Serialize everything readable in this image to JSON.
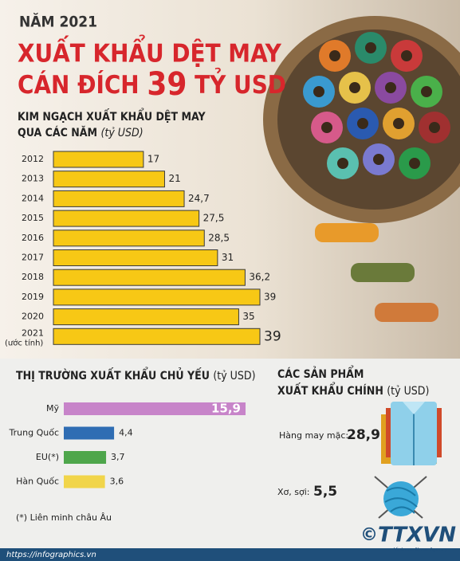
{
  "header": {
    "kicker": "NĂM 2021",
    "title_line1": "XUẤT KHẨU DỆT MAY",
    "title_line2": [
      "CÁN ĐÍCH",
      "39",
      "TỶ USD"
    ]
  },
  "chart_data": [
    {
      "type": "hbar",
      "title": [
        "KIM NGẠCH XUẤT KHẨU DỆT MAY",
        "QUA CÁC NĂM"
      ],
      "unit": "(tỷ USD)",
      "categories": [
        "2012",
        "2013",
        "2014",
        "2015",
        "2016",
        "2017",
        "2018",
        "2019",
        "2020",
        "2021"
      ],
      "annotations": [
        "(ước tính)"
      ],
      "values": [
        17,
        21,
        24.7,
        27.5,
        28.5,
        31,
        36.2,
        39,
        35,
        39
      ],
      "value_labels": [
        "17",
        "21",
        "24,7",
        "27,5",
        "28,5",
        "31",
        "36,2",
        "39",
        "35",
        "39"
      ],
      "color": "#f7c815"
    },
    {
      "type": "hbar-colored",
      "title": [
        "THỊ TRƯỜNG XUẤT KHẨU CHỦ YẾU"
      ],
      "unit": "(tỷ USD)",
      "categories": [
        "Mỹ",
        "Trung Quốc",
        "EU(*)",
        "Hàn Quốc"
      ],
      "values": [
        15.9,
        4.4,
        3.7,
        3.6
      ],
      "value_labels": [
        "15,9",
        "4,4",
        "3,7",
        "3,6"
      ],
      "colors": [
        "#c784c9",
        "#2f6db3",
        "#4ea64b",
        "#f1d54a"
      ],
      "footnote": "(*) Liên minh châu Âu"
    }
  ],
  "products": {
    "title": [
      "CÁC SẢN PHẨM",
      "XUẤT KHẨU CHÍNH"
    ],
    "unit": "(tỷ USD)",
    "items": [
      {
        "label": "Hàng may mặc:",
        "value": "28,9"
      },
      {
        "label": "Xơ, sợi:",
        "value": "5,5"
      }
    ]
  },
  "footer": {
    "source": "https://infographics.vn",
    "copyright": "©",
    "logo": "TTXVN",
    "logo_sub": "Vietnam News Agency"
  }
}
